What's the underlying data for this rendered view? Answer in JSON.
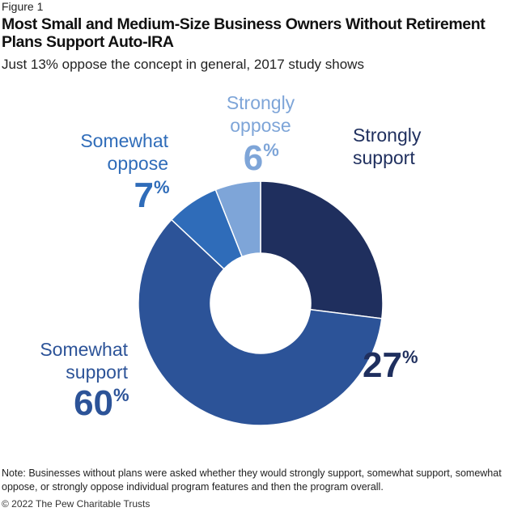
{
  "figure_label": "Figure 1",
  "title": "Most Small and Medium-Size Business Owners Without Retirement Plans Support Auto-IRA",
  "subtitle": "Just 13% oppose the concept in general, 2017 study shows",
  "note": "Note: Businesses without plans were asked whether they would strongly support, somewhat support, somewhat oppose, or strongly oppose individual program features and then the program overall.",
  "credit": "© 2022 The Pew Charitable Trusts",
  "chart_data": {
    "type": "pie",
    "donut": true,
    "title": "",
    "slices": [
      {
        "label": [
          "Strongly",
          "support"
        ],
        "value": 27,
        "display": "27",
        "color": "#1f2f5e"
      },
      {
        "label": [
          "Somewhat",
          "support"
        ],
        "value": 60,
        "display": "60",
        "color": "#2c5398"
      },
      {
        "label": [
          "Somewhat",
          "oppose"
        ],
        "value": 7,
        "display": "7",
        "color": "#2f6cb9"
      },
      {
        "label": [
          "Strongly",
          "oppose"
        ],
        "value": 6,
        "display": "6",
        "color": "#7ea5d8"
      }
    ],
    "percent_symbol": "%"
  }
}
